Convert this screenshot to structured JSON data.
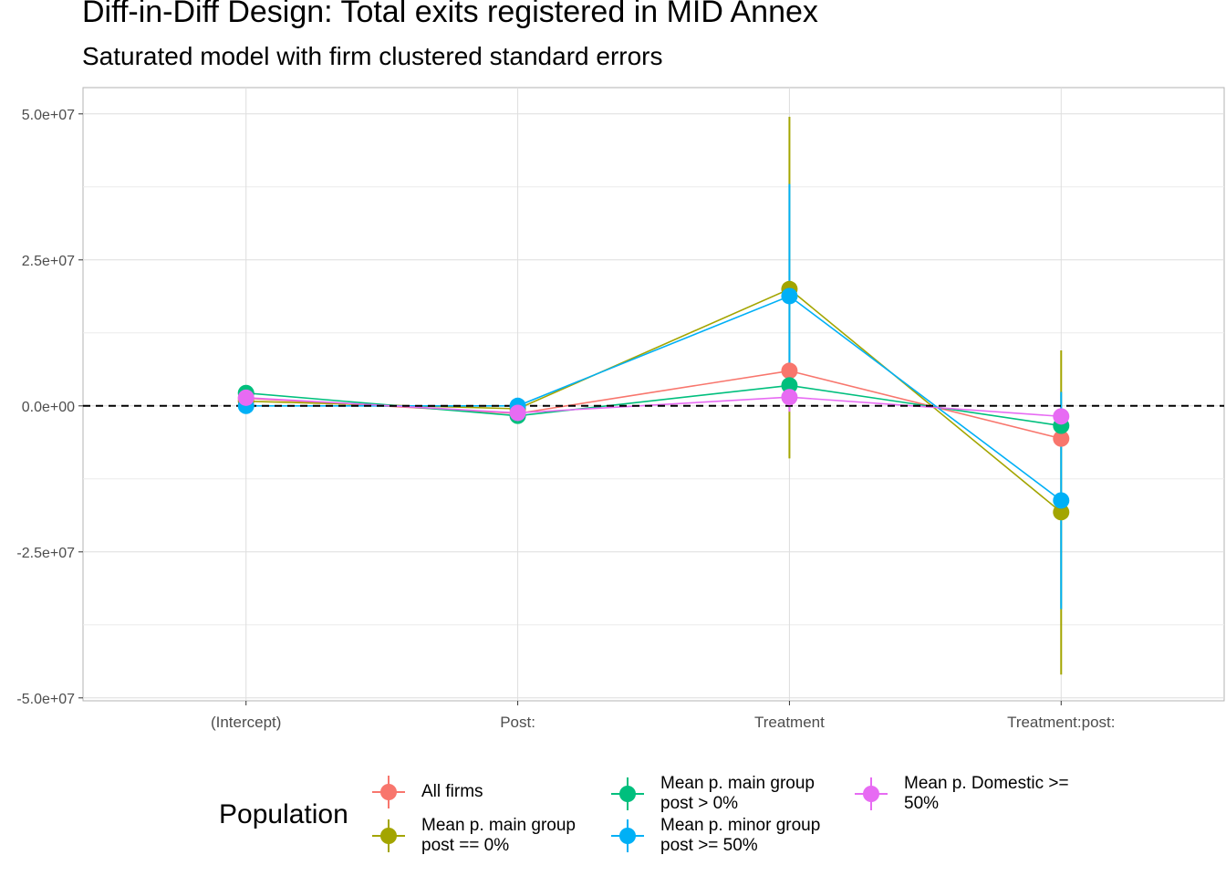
{
  "title": "Diff-in-Diff Design: Total exits registered in MID Annex",
  "subtitle": "Saturated model with firm clustered standard errors",
  "chart_data": {
    "type": "line",
    "categories": [
      "(Intercept)",
      "Post:",
      "Treatment",
      "Treatment:post:"
    ],
    "y_ticks": [
      {
        "value": 50000000,
        "label": "5.0e+07"
      },
      {
        "value": 25000000,
        "label": "2.5e+07"
      },
      {
        "value": 0,
        "label": "0.0e+00"
      },
      {
        "value": -25000000,
        "label": "-2.5e+07"
      },
      {
        "value": -50000000,
        "label": "-5.0e+07"
      }
    ],
    "ylim": [
      -50500000,
      54500000
    ],
    "reference_line": 0,
    "legend_title": "Population",
    "series": [
      {
        "name": "All firms",
        "color": "#F8766D",
        "values": [
          1300000,
          -1300000,
          6000000,
          -5600000
        ],
        "lower": [
          300000,
          -1700000,
          4500000,
          -6600000
        ],
        "upper": [
          2300000,
          -900000,
          7500000,
          -4600000
        ]
      },
      {
        "name": "Mean p. main group\npost == 0%",
        "color": "#A3A500",
        "values": [
          800000,
          -500000,
          20000000,
          -18200000
        ],
        "lower": [
          200000,
          -900000,
          -9000000,
          -46000000
        ],
        "upper": [
          1400000,
          -100000,
          49500000,
          9500000
        ]
      },
      {
        "name": "Mean p. main group\npost > 0%",
        "color": "#00BF7D",
        "values": [
          2200000,
          -1700000,
          3500000,
          -3400000
        ],
        "lower": [
          1700000,
          -2200000,
          2500000,
          -4400000
        ],
        "upper": [
          2700000,
          -1200000,
          4500000,
          -2400000
        ]
      },
      {
        "name": "Mean p. minor group\npost >= 50%",
        "color": "#00B0F6",
        "values": [
          0,
          0,
          18800000,
          -16200000
        ],
        "lower": [
          -300000,
          -300000,
          -500000,
          -34800000
        ],
        "upper": [
          300000,
          300000,
          38000000,
          2400000
        ]
      },
      {
        "name": "Mean p. Domestic >=\n50%",
        "color": "#E76BF3",
        "values": [
          1400000,
          -1200000,
          1500000,
          -1800000
        ],
        "lower": [
          900000,
          -1600000,
          -1000000,
          -2400000
        ],
        "upper": [
          1900000,
          -800000,
          4000000,
          -1200000
        ]
      }
    ]
  }
}
